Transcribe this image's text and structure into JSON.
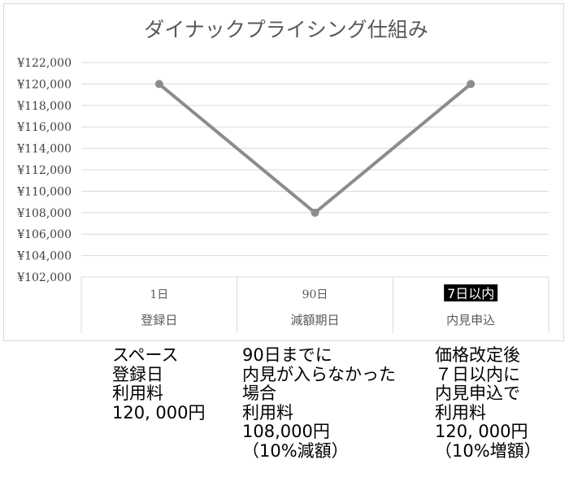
{
  "chart_data": {
    "type": "line",
    "title": "ダイナックプライシング仕組み",
    "categories": [
      {
        "top": "1日",
        "bottom": "登録日"
      },
      {
        "top": "90日",
        "bottom": "減額期日"
      },
      {
        "top": "7日以内",
        "bottom": "内見申込",
        "highlight": true
      }
    ],
    "values": [
      120000,
      108000,
      120000
    ],
    "ylim": [
      102000,
      122000
    ],
    "yticks": [
      "¥102,000",
      "¥104,000",
      "¥106,000",
      "¥108,000",
      "¥110,000",
      "¥112,000",
      "¥114,000",
      "¥116,000",
      "¥118,000",
      "¥120,000",
      "¥122,000"
    ],
    "grid": true,
    "line_color": "#8c8c8c",
    "grid_color": "#d9d9d9"
  },
  "notes": [
    {
      "lines": [
        "スペース",
        "登録日",
        "利用料",
        "120, 000円"
      ]
    },
    {
      "lines": [
        "90日までに",
        "内見が入らなかった",
        "場合",
        "利用料",
        "108,000円",
        "（10%減額）"
      ]
    },
    {
      "lines": [
        "価格改定後",
        "７日以内に",
        "内見申込で",
        "利用料",
        "120, 000円",
        "（10%増額）"
      ]
    }
  ]
}
